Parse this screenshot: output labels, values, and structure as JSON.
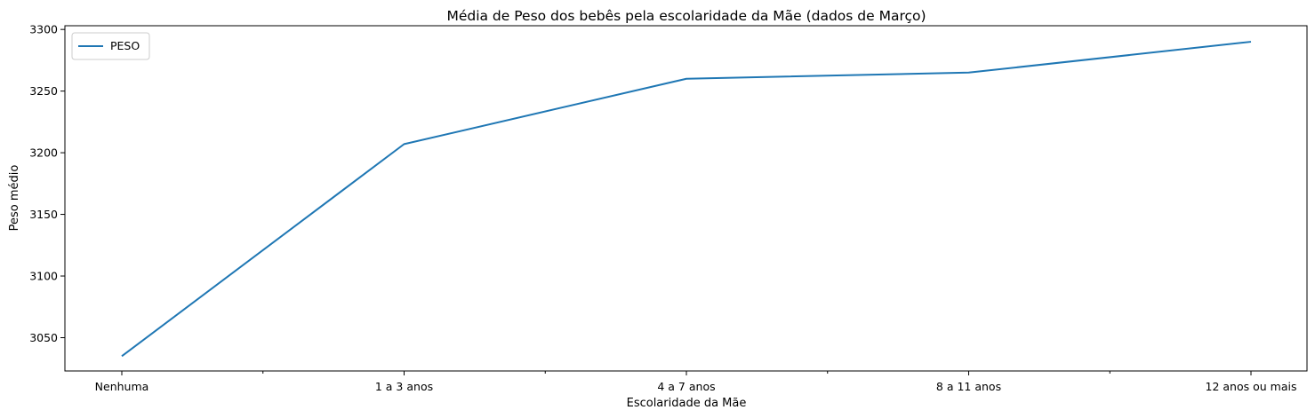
{
  "chart_data": {
    "type": "line",
    "title": "Média de Peso dos bebês pela escolaridade da Mãe (dados de Março)",
    "xlabel": "Escolaridade da Mãe",
    "ylabel": "Peso médio",
    "categories": [
      "Nenhuma",
      "1 a 3 anos",
      "4 a 7 anos",
      "8 a 11 anos",
      "12 anos ou mais"
    ],
    "yticks": [
      3050,
      3100,
      3150,
      3200,
      3250,
      3300
    ],
    "ylim": [
      3023,
      3303
    ],
    "grid": false,
    "legend_position": "top-left",
    "series": [
      {
        "name": "PESO",
        "color": "#1f77b4",
        "values": [
          3035,
          3207,
          3260,
          3265,
          3290
        ]
      }
    ]
  }
}
